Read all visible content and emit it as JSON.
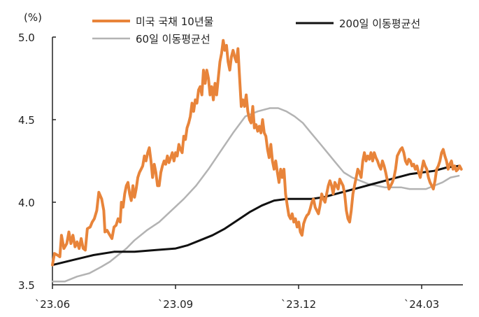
{
  "chart_data": {
    "type": "line",
    "ylabel": "(%)",
    "ylim": [
      3.5,
      5.0
    ],
    "yticks": [
      "5.0",
      "4.5",
      "4.0",
      "3.5"
    ],
    "xticks": [
      {
        "label": "`23.06",
        "x": 0
      },
      {
        "label": "`23.09",
        "x": 3
      },
      {
        "label": "`23.12",
        "x": 6
      },
      {
        "label": "`24.03",
        "x": 9
      }
    ],
    "xlim": [
      0,
      10
    ],
    "legend": [
      "미국 국채 10년물",
      "60일 이동평균선",
      "200일 이동평균선"
    ],
    "grid": false,
    "series": [
      {
        "name": "미국 국채 10년물",
        "color": "#E8843A",
        "points": [
          [
            0.0,
            3.62
          ],
          [
            0.05,
            3.69
          ],
          [
            0.12,
            3.68
          ],
          [
            0.18,
            3.67
          ],
          [
            0.22,
            3.8
          ],
          [
            0.28,
            3.72
          ],
          [
            0.35,
            3.75
          ],
          [
            0.4,
            3.82
          ],
          [
            0.45,
            3.75
          ],
          [
            0.5,
            3.8
          ],
          [
            0.55,
            3.73
          ],
          [
            0.6,
            3.76
          ],
          [
            0.65,
            3.72
          ],
          [
            0.7,
            3.78
          ],
          [
            0.75,
            3.72
          ],
          [
            0.8,
            3.71
          ],
          [
            0.85,
            3.84
          ],
          [
            0.92,
            3.85
          ],
          [
            0.97,
            3.88
          ],
          [
            1.02,
            3.9
          ],
          [
            1.08,
            3.95
          ],
          [
            1.13,
            4.06
          ],
          [
            1.2,
            4.02
          ],
          [
            1.25,
            3.95
          ],
          [
            1.28,
            3.82
          ],
          [
            1.33,
            3.83
          ],
          [
            1.4,
            3.8
          ],
          [
            1.45,
            3.78
          ],
          [
            1.5,
            3.85
          ],
          [
            1.55,
            3.86
          ],
          [
            1.6,
            3.9
          ],
          [
            1.65,
            3.88
          ],
          [
            1.68,
            4.0
          ],
          [
            1.72,
            3.97
          ],
          [
            1.76,
            4.05
          ],
          [
            1.8,
            4.1
          ],
          [
            1.84,
            4.12
          ],
          [
            1.88,
            4.05
          ],
          [
            1.92,
            4.01
          ],
          [
            1.96,
            4.1
          ],
          [
            2.0,
            4.03
          ],
          [
            2.04,
            4.08
          ],
          [
            2.08,
            4.15
          ],
          [
            2.12,
            4.18
          ],
          [
            2.16,
            4.2
          ],
          [
            2.2,
            4.22
          ],
          [
            2.24,
            4.28
          ],
          [
            2.28,
            4.25
          ],
          [
            2.32,
            4.3
          ],
          [
            2.36,
            4.33
          ],
          [
            2.4,
            4.25
          ],
          [
            2.44,
            4.15
          ],
          [
            2.48,
            4.23
          ],
          [
            2.52,
            4.18
          ],
          [
            2.56,
            4.1
          ],
          [
            2.6,
            4.1
          ],
          [
            2.64,
            4.18
          ],
          [
            2.68,
            4.22
          ],
          [
            2.72,
            4.25
          ],
          [
            2.76,
            4.23
          ],
          [
            2.8,
            4.28
          ],
          [
            2.84,
            4.24
          ],
          [
            2.88,
            4.27
          ],
          [
            2.92,
            4.3
          ],
          [
            2.96,
            4.25
          ],
          [
            3.0,
            4.3
          ],
          [
            3.04,
            4.28
          ],
          [
            3.08,
            4.35
          ],
          [
            3.12,
            4.32
          ],
          [
            3.16,
            4.3
          ],
          [
            3.2,
            4.4
          ],
          [
            3.24,
            4.38
          ],
          [
            3.28,
            4.45
          ],
          [
            3.32,
            4.48
          ],
          [
            3.36,
            4.52
          ],
          [
            3.4,
            4.6
          ],
          [
            3.44,
            4.55
          ],
          [
            3.48,
            4.62
          ],
          [
            3.52,
            4.6
          ],
          [
            3.56,
            4.68
          ],
          [
            3.6,
            4.7
          ],
          [
            3.64,
            4.65
          ],
          [
            3.68,
            4.8
          ],
          [
            3.72,
            4.72
          ],
          [
            3.76,
            4.8
          ],
          [
            3.8,
            4.75
          ],
          [
            3.84,
            4.65
          ],
          [
            3.88,
            4.7
          ],
          [
            3.92,
            4.62
          ],
          [
            3.96,
            4.72
          ],
          [
            4.0,
            4.65
          ],
          [
            4.04,
            4.75
          ],
          [
            4.08,
            4.85
          ],
          [
            4.12,
            4.9
          ],
          [
            4.16,
            4.98
          ],
          [
            4.2,
            4.92
          ],
          [
            4.24,
            4.95
          ],
          [
            4.28,
            4.85
          ],
          [
            4.32,
            4.8
          ],
          [
            4.36,
            4.88
          ],
          [
            4.4,
            4.92
          ],
          [
            4.44,
            4.88
          ],
          [
            4.48,
            4.85
          ],
          [
            4.52,
            4.93
          ],
          [
            4.56,
            4.75
          ],
          [
            4.6,
            4.58
          ],
          [
            4.64,
            4.62
          ],
          [
            4.68,
            4.58
          ],
          [
            4.72,
            4.65
          ],
          [
            4.76,
            4.55
          ],
          [
            4.8,
            4.5
          ],
          [
            4.84,
            4.48
          ],
          [
            4.88,
            4.58
          ],
          [
            4.92,
            4.45
          ],
          [
            4.96,
            4.47
          ],
          [
            5.0,
            4.43
          ],
          [
            5.04,
            4.46
          ],
          [
            5.08,
            4.42
          ],
          [
            5.12,
            4.5
          ],
          [
            5.16,
            4.42
          ],
          [
            5.2,
            4.4
          ],
          [
            5.24,
            4.32
          ],
          [
            5.28,
            4.27
          ],
          [
            5.32,
            4.35
          ],
          [
            5.36,
            4.25
          ],
          [
            5.4,
            4.2
          ],
          [
            5.44,
            4.25
          ],
          [
            5.48,
            4.18
          ],
          [
            5.52,
            4.12
          ],
          [
            5.56,
            4.2
          ],
          [
            5.6,
            4.15
          ],
          [
            5.64,
            4.2
          ],
          [
            5.68,
            4.05
          ],
          [
            5.72,
            3.98
          ],
          [
            5.76,
            3.92
          ],
          [
            5.8,
            3.9
          ],
          [
            5.84,
            3.93
          ],
          [
            5.88,
            3.88
          ],
          [
            5.92,
            3.9
          ],
          [
            5.96,
            3.85
          ],
          [
            6.0,
            3.88
          ],
          [
            6.04,
            3.82
          ],
          [
            6.08,
            3.8
          ],
          [
            6.12,
            3.87
          ],
          [
            6.16,
            3.9
          ],
          [
            6.2,
            3.92
          ],
          [
            6.24,
            3.93
          ],
          [
            6.28,
            3.96
          ],
          [
            6.32,
            4.0
          ],
          [
            6.36,
            4.02
          ],
          [
            6.4,
            3.97
          ],
          [
            6.44,
            3.95
          ],
          [
            6.48,
            3.93
          ],
          [
            6.52,
            3.98
          ],
          [
            6.56,
            4.05
          ],
          [
            6.6,
            4.02
          ],
          [
            6.64,
            4.0
          ],
          [
            6.68,
            4.05
          ],
          [
            6.72,
            4.1
          ],
          [
            6.76,
            4.13
          ],
          [
            6.8,
            4.1
          ],
          [
            6.84,
            4.05
          ],
          [
            6.88,
            4.12
          ],
          [
            6.92,
            4.1
          ],
          [
            6.96,
            4.08
          ],
          [
            7.0,
            4.14
          ],
          [
            7.04,
            4.12
          ],
          [
            7.08,
            4.1
          ],
          [
            7.12,
            4.05
          ],
          [
            7.16,
            3.95
          ],
          [
            7.2,
            3.9
          ],
          [
            7.24,
            3.88
          ],
          [
            7.28,
            3.95
          ],
          [
            7.32,
            4.05
          ],
          [
            7.36,
            4.1
          ],
          [
            7.4,
            4.15
          ],
          [
            7.44,
            4.2
          ],
          [
            7.48,
            4.18
          ],
          [
            7.52,
            4.15
          ],
          [
            7.56,
            4.25
          ],
          [
            7.6,
            4.3
          ],
          [
            7.64,
            4.25
          ],
          [
            7.68,
            4.28
          ],
          [
            7.72,
            4.26
          ],
          [
            7.76,
            4.3
          ],
          [
            7.8,
            4.25
          ],
          [
            7.84,
            4.3
          ],
          [
            7.88,
            4.27
          ],
          [
            7.92,
            4.25
          ],
          [
            7.96,
            4.22
          ],
          [
            8.0,
            4.2
          ],
          [
            8.04,
            4.25
          ],
          [
            8.08,
            4.22
          ],
          [
            8.12,
            4.18
          ],
          [
            8.16,
            4.13
          ],
          [
            8.2,
            4.08
          ],
          [
            8.24,
            4.1
          ],
          [
            8.28,
            4.12
          ],
          [
            8.32,
            4.15
          ],
          [
            8.36,
            4.2
          ],
          [
            8.4,
            4.28
          ],
          [
            8.44,
            4.3
          ],
          [
            8.48,
            4.32
          ],
          [
            8.52,
            4.33
          ],
          [
            8.56,
            4.3
          ],
          [
            8.6,
            4.25
          ],
          [
            8.64,
            4.23
          ],
          [
            8.68,
            4.26
          ],
          [
            8.72,
            4.25
          ],
          [
            8.76,
            4.22
          ],
          [
            8.8,
            4.23
          ],
          [
            8.84,
            4.2
          ],
          [
            8.88,
            4.22
          ],
          [
            8.92,
            4.18
          ],
          [
            8.96,
            4.15
          ],
          [
            9.0,
            4.2
          ],
          [
            9.04,
            4.25
          ],
          [
            9.08,
            4.22
          ],
          [
            9.12,
            4.2
          ],
          [
            9.16,
            4.15
          ],
          [
            9.2,
            4.12
          ],
          [
            9.24,
            4.1
          ],
          [
            9.28,
            4.08
          ],
          [
            9.32,
            4.13
          ],
          [
            9.36,
            4.2
          ],
          [
            9.4,
            4.22
          ],
          [
            9.44,
            4.25
          ],
          [
            9.48,
            4.3
          ],
          [
            9.52,
            4.32
          ],
          [
            9.56,
            4.28
          ],
          [
            9.6,
            4.25
          ],
          [
            9.64,
            4.2
          ],
          [
            9.68,
            4.23
          ],
          [
            9.72,
            4.25
          ],
          [
            9.76,
            4.2
          ],
          [
            9.8,
            4.22
          ],
          [
            9.84,
            4.19
          ],
          [
            9.88,
            4.2
          ],
          [
            9.92,
            4.22
          ],
          [
            9.96,
            4.2
          ]
        ]
      },
      {
        "name": "60일 이동평균선",
        "color": "#B3B3B3",
        "points": [
          [
            0.0,
            3.52
          ],
          [
            0.3,
            3.52
          ],
          [
            0.6,
            3.55
          ],
          [
            0.9,
            3.57
          ],
          [
            1.2,
            3.61
          ],
          [
            1.4,
            3.64
          ],
          [
            1.6,
            3.68
          ],
          [
            1.8,
            3.72
          ],
          [
            2.0,
            3.77
          ],
          [
            2.3,
            3.83
          ],
          [
            2.6,
            3.88
          ],
          [
            2.9,
            3.95
          ],
          [
            3.2,
            4.02
          ],
          [
            3.5,
            4.1
          ],
          [
            3.8,
            4.2
          ],
          [
            4.1,
            4.31
          ],
          [
            4.4,
            4.42
          ],
          [
            4.7,
            4.52
          ],
          [
            5.0,
            4.55
          ],
          [
            5.3,
            4.57
          ],
          [
            5.5,
            4.57
          ],
          [
            5.7,
            4.55
          ],
          [
            5.9,
            4.52
          ],
          [
            6.1,
            4.48
          ],
          [
            6.3,
            4.42
          ],
          [
            6.5,
            4.36
          ],
          [
            6.7,
            4.3
          ],
          [
            6.9,
            4.24
          ],
          [
            7.1,
            4.18
          ],
          [
            7.3,
            4.15
          ],
          [
            7.5,
            4.13
          ],
          [
            7.7,
            4.11
          ],
          [
            7.9,
            4.1
          ],
          [
            8.1,
            4.09
          ],
          [
            8.3,
            4.09
          ],
          [
            8.5,
            4.09
          ],
          [
            8.7,
            4.08
          ],
          [
            8.9,
            4.08
          ],
          [
            9.1,
            4.08
          ],
          [
            9.3,
            4.1
          ],
          [
            9.5,
            4.12
          ],
          [
            9.7,
            4.15
          ],
          [
            9.9,
            4.16
          ]
        ]
      },
      {
        "name": "200일 이동평균선",
        "color": "#111111",
        "points": [
          [
            0.0,
            3.62
          ],
          [
            0.5,
            3.65
          ],
          [
            1.0,
            3.68
          ],
          [
            1.5,
            3.7
          ],
          [
            2.0,
            3.7
          ],
          [
            2.5,
            3.71
          ],
          [
            3.0,
            3.72
          ],
          [
            3.3,
            3.74
          ],
          [
            3.6,
            3.77
          ],
          [
            3.9,
            3.8
          ],
          [
            4.2,
            3.84
          ],
          [
            4.5,
            3.89
          ],
          [
            4.8,
            3.94
          ],
          [
            5.1,
            3.98
          ],
          [
            5.4,
            4.01
          ],
          [
            5.7,
            4.02
          ],
          [
            6.0,
            4.02
          ],
          [
            6.3,
            4.02
          ],
          [
            6.6,
            4.03
          ],
          [
            6.9,
            4.05
          ],
          [
            7.2,
            4.07
          ],
          [
            7.5,
            4.09
          ],
          [
            7.8,
            4.11
          ],
          [
            8.1,
            4.13
          ],
          [
            8.4,
            4.15
          ],
          [
            8.7,
            4.17
          ],
          [
            9.0,
            4.18
          ],
          [
            9.3,
            4.19
          ],
          [
            9.6,
            4.21
          ],
          [
            9.9,
            4.22
          ]
        ]
      }
    ]
  }
}
